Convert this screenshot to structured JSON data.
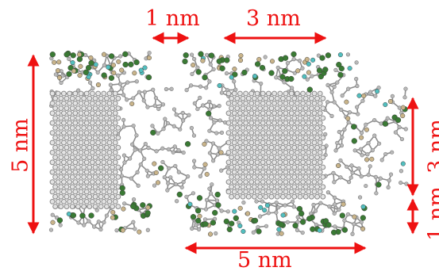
{
  "labels": {
    "top_left_gap": "1 nm",
    "top_width": "3 nm",
    "left_height": "5 nm",
    "bottom_width": "5 nm",
    "right_height": "3 nm",
    "right_gap": "1 nm"
  },
  "colors": {
    "annotation": "#ee1111",
    "carbon": "#a8a8a8",
    "nitrogen": "#3a7a34",
    "oxygen": "#c9b48a",
    "fluorine": "#52bfbf"
  }
}
